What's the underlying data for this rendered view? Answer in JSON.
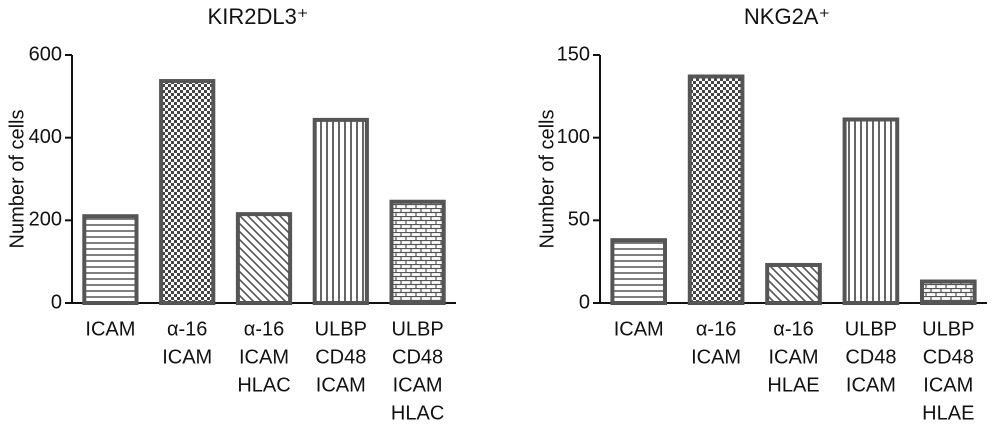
{
  "chart_data": [
    {
      "type": "bar",
      "title": "KIR2DL3⁺",
      "y_label": "Number of cells",
      "categories": [
        [
          "ICAM"
        ],
        [
          "α-16",
          "ICAM"
        ],
        [
          "α-16",
          "ICAM",
          "HLAC"
        ],
        [
          "ULBP",
          "CD48",
          "ICAM"
        ],
        [
          "ULBP",
          "CD48",
          "ICAM",
          "HLAC"
        ]
      ],
      "values": [
        210,
        537,
        215,
        443,
        245
      ],
      "patterns": [
        "horizontal",
        "checker",
        "diagonal",
        "vertical",
        "brick"
      ],
      "color": "#555555",
      "ylim": [
        0,
        600
      ],
      "yticks": [
        0,
        200,
        400,
        600
      ]
    },
    {
      "type": "bar",
      "title": "NKG2A⁺",
      "y_label": "Number of cells",
      "categories": [
        [
          "ICAM"
        ],
        [
          "α-16",
          "ICAM"
        ],
        [
          "α-16",
          "ICAM",
          "HLAE"
        ],
        [
          "ULBP",
          "CD48",
          "ICAM"
        ],
        [
          "ULBP",
          "CD48",
          "ICAM",
          "HLAE"
        ]
      ],
      "values": [
        38,
        137,
        23,
        111,
        13
      ],
      "patterns": [
        "horizontal",
        "checker",
        "diagonal",
        "vertical",
        "brick"
      ],
      "color": "#555555",
      "ylim": [
        0,
        150
      ],
      "yticks": [
        0,
        50,
        100,
        150
      ]
    }
  ]
}
